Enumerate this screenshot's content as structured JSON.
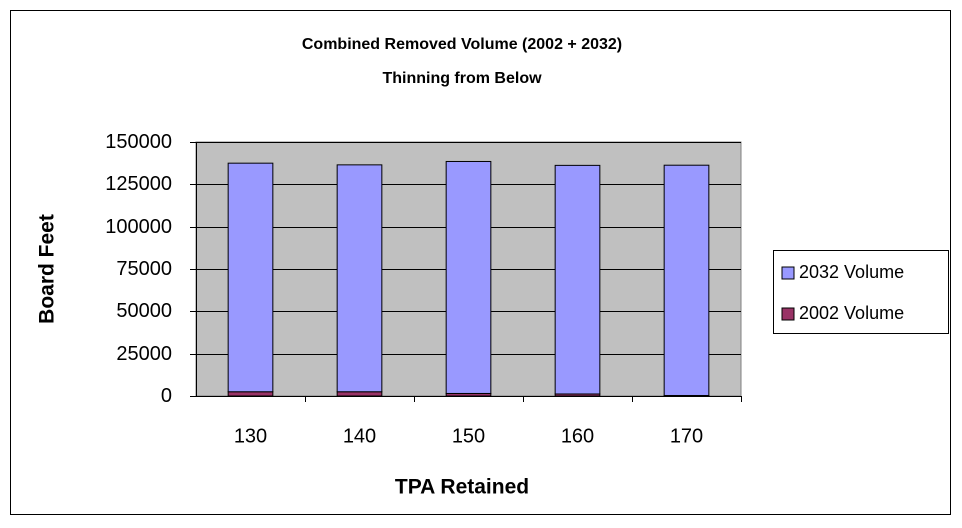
{
  "chart_data": {
    "type": "stacked_bar",
    "title": "Combined Removed Volume (2002 + 2032)",
    "subtitle": "Thinning from Below",
    "x_label": "TPA Retained",
    "y_label": "Board Feet",
    "categories": [
      "130",
      "140",
      "150",
      "160",
      "170"
    ],
    "series": [
      {
        "name": "2002 Volume",
        "color": "#993366",
        "values": [
          2500,
          2500,
          1500,
          1200,
          300
        ]
      },
      {
        "name": "2032 Volume",
        "color": "#9999ff",
        "values": [
          135000,
          134000,
          137000,
          135000,
          136000
        ]
      }
    ],
    "ylim": [
      0,
      150000
    ],
    "yticks": [
      0,
      25000,
      50000,
      75000,
      100000,
      125000,
      150000
    ],
    "grid": true,
    "legend": "right",
    "plot_background": "#c0c0c0"
  }
}
